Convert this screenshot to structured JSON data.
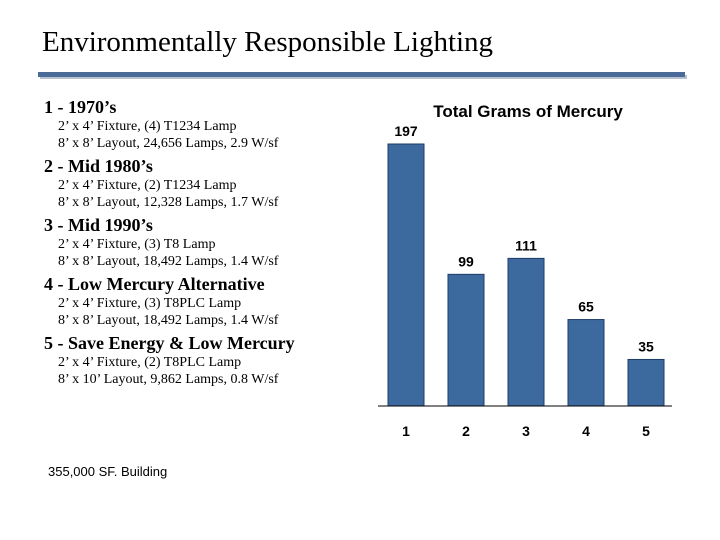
{
  "page": {
    "title": "Environmentally Responsible Lighting",
    "footnote": "355,000 SF. Building"
  },
  "scenarios": [
    {
      "heading": "1 - 1970’s",
      "lines": [
        "2’ x 4’ Fixture, (4) T1234 Lamp",
        "8’ x 8’ Layout, 24,656 Lamps, 2.9 W/sf"
      ]
    },
    {
      "heading": "2 - Mid 1980’s",
      "lines": [
        "2’ x 4’ Fixture, (2) T1234 Lamp",
        "8’ x 8’ Layout, 12,328 Lamps, 1.7 W/sf"
      ]
    },
    {
      "heading": "3 - Mid 1990’s",
      "lines": [
        "2’ x 4’ Fixture, (3) T8 Lamp",
        "8’ x 8’ Layout, 18,492 Lamps, 1.4 W/sf"
      ]
    },
    {
      "heading": "4 - Low Mercury Alternative",
      "lines": [
        "2’ x 4’ Fixture, (3) T8PLC Lamp",
        "8’ x 8’ Layout, 18,492 Lamps, 1.4 W/sf"
      ]
    },
    {
      "heading": "5 - Save Energy & Low Mercury",
      "lines": [
        "2’ x 4’ Fixture, (2) T8PLC Lamp",
        "8’ x 10’ Layout, 9,862 Lamps, 0.8 W/sf"
      ]
    }
  ],
  "colors": {
    "bar": "#3d6a9e",
    "bar_edge": "#1e3c66",
    "rule": "#4a6b98"
  },
  "chart_data": {
    "type": "bar",
    "title": "Total Grams of Mercury",
    "categories": [
      "1",
      "2",
      "3",
      "4",
      "5"
    ],
    "values": [
      197,
      99,
      111,
      65,
      35
    ],
    "data_labels": [
      "197",
      "99",
      "111",
      "65",
      "35"
    ],
    "xlabel": "",
    "ylabel": "",
    "ylim": [
      0,
      197
    ],
    "grid": false,
    "legend": "none"
  }
}
